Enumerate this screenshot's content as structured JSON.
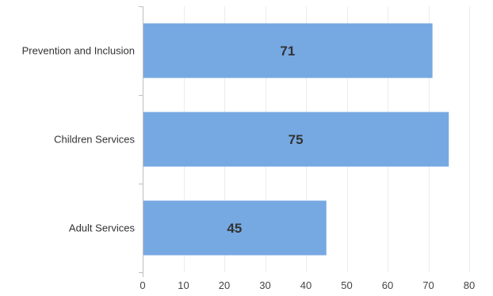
{
  "chart_data": {
    "type": "bar",
    "orientation": "horizontal",
    "categories": [
      "Prevention and Inclusion",
      "Children Services",
      "Adult Services"
    ],
    "values": [
      71,
      75,
      45
    ],
    "data_labels": [
      "71",
      "75",
      "45"
    ],
    "xlim": [
      0,
      80
    ],
    "x_ticks": [
      0,
      10,
      20,
      30,
      40,
      50,
      60,
      70,
      80
    ],
    "title": "",
    "xlabel": "",
    "ylabel": "",
    "grid": true,
    "legend": "none",
    "bar_color": "#76a9e2"
  }
}
